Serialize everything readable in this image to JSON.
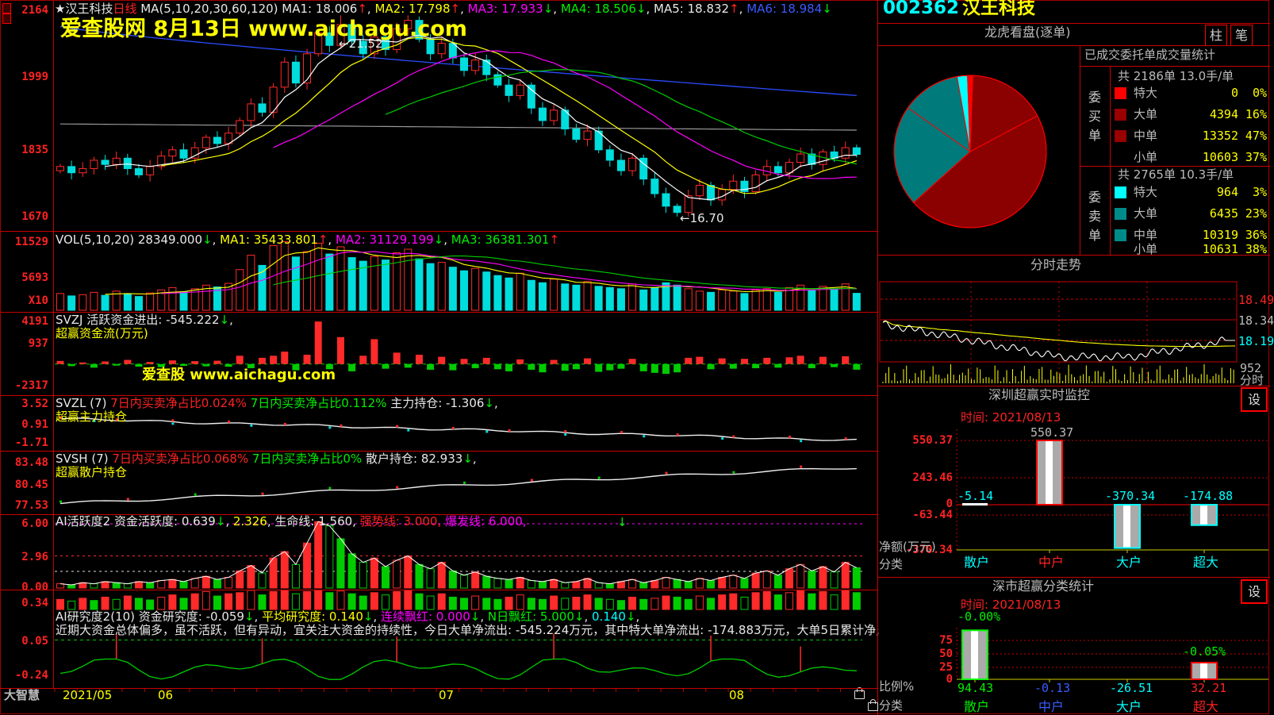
{
  "app": {
    "brand": "大智慧"
  },
  "watermark": {
    "main": "爱查股网   8月13日   www.aichagu.com",
    "inner": "爱查股 www.aichagu.com"
  },
  "main_header": {
    "segments": [
      [
        "★汉王科技",
        "w"
      ],
      [
        "日线",
        "r"
      ],
      [
        " MA(5,10,20,30,60,120) ",
        "w"
      ],
      [
        "MA1: 18.006",
        "w"
      ],
      [
        "↑",
        "r"
      ],
      [
        ", ",
        "w"
      ],
      [
        "MA2: 17.798",
        "y"
      ],
      [
        "↑",
        "r"
      ],
      [
        ", ",
        "w"
      ],
      [
        "MA3: 17.933",
        "m"
      ],
      [
        "↓",
        "g"
      ],
      [
        ", ",
        "w"
      ],
      [
        "MA4: 18.506",
        "g"
      ],
      [
        "↓",
        "g"
      ],
      [
        ", ",
        "w"
      ],
      [
        "MA5: 18.832",
        "w"
      ],
      [
        "↑",
        "r"
      ],
      [
        ", ",
        "w"
      ],
      [
        "MA6: 18.984",
        "b"
      ],
      [
        "↓",
        "g"
      ]
    ]
  },
  "annotations": {
    "high": "←21.52",
    "low": "←16.70"
  },
  "left_axis": {
    "main": [
      "2164",
      "1999",
      "1835",
      "1670"
    ],
    "vol": [
      "11529",
      "5693"
    ],
    "vol_unit": "X10",
    "svzj": [
      "4191",
      "937",
      "-2317"
    ],
    "svzl": [
      "3.52",
      "0.91",
      "-1.71"
    ],
    "svsh": [
      "83.48",
      "80.45",
      "77.53"
    ],
    "ai1": [
      "6.00",
      "2.96",
      "0.00"
    ],
    "ai2": [
      "0.34",
      "0.05",
      "-0.24"
    ]
  },
  "panel_headers": {
    "vol": {
      "segments": [
        [
          "VOL(5,10,20) 28349.000",
          "w"
        ],
        [
          "↓",
          "g"
        ],
        [
          ", ",
          "w"
        ],
        [
          "MA1: 35433.801",
          "y"
        ],
        [
          "↑",
          "r"
        ],
        [
          ", ",
          "w"
        ],
        [
          "MA2: 31129.199",
          "m"
        ],
        [
          "↓",
          "g"
        ],
        [
          ", ",
          "w"
        ],
        [
          "MA3: 36381.301",
          "g"
        ],
        [
          "↑",
          "r"
        ]
      ]
    },
    "svzj1": {
      "segments": [
        [
          "SVZJ  活跃资金进出: -545.222",
          "w"
        ],
        [
          "↓",
          "g"
        ],
        [
          ",",
          "w"
        ]
      ]
    },
    "svzj2": {
      "segments": [
        [
          "超赢资金流(万元)",
          "y"
        ]
      ]
    },
    "svzl1": {
      "segments": [
        [
          "SVZL (7) ",
          "w"
        ],
        [
          "7日内买卖净占比0.024% ",
          "r"
        ],
        [
          "7日内买卖净占比0.112% ",
          "g"
        ],
        [
          "主力持仓: -1.306",
          "w"
        ],
        [
          "↓",
          "g"
        ],
        [
          ",",
          "w"
        ]
      ]
    },
    "svzl2": {
      "segments": [
        [
          "超赢主力持仓",
          "y"
        ]
      ]
    },
    "svsh1": {
      "segments": [
        [
          "SVSH (7) ",
          "w"
        ],
        [
          "7日内买卖净占比0.068% ",
          "r"
        ],
        [
          "7日内买卖净占比0% ",
          "g"
        ],
        [
          "散户持仓: 82.933",
          "w"
        ],
        [
          "↓",
          "g"
        ],
        [
          ",",
          "w"
        ]
      ]
    },
    "svsh2": {
      "segments": [
        [
          "超赢散户持仓",
          "y"
        ]
      ]
    },
    "ai1": {
      "segments": [
        [
          "AI活跃度2 资金活跃度: 0.639",
          "w"
        ],
        [
          "↓",
          "g"
        ],
        [
          ", ",
          "w"
        ],
        [
          "2.326",
          "y"
        ],
        [
          ", ",
          "w"
        ],
        [
          "生命线: 1.560, ",
          "w"
        ],
        [
          "强势线: 3.000, ",
          "r"
        ],
        [
          "爆发线: 6.000,",
          "m"
        ]
      ]
    },
    "ai2": {
      "segments": [
        [
          "AI研究度2(10) 资金研究度: -0.059",
          "w"
        ],
        [
          "↓",
          "g"
        ],
        [
          ", ",
          "w"
        ],
        [
          "平均研究度: 0.140",
          "y"
        ],
        [
          "↓",
          "g"
        ],
        [
          ", ",
          "w"
        ],
        [
          "连续飘红: 0.000",
          "m"
        ],
        [
          "↓",
          "g"
        ],
        [
          ", ",
          "w"
        ],
        [
          "N日飘红: 5.000",
          "g"
        ],
        [
          "↓",
          "g"
        ],
        [
          ", ",
          "w"
        ],
        [
          "0.140",
          "c"
        ],
        [
          "↓",
          "g"
        ],
        [
          ",",
          "w"
        ]
      ]
    },
    "ai2note": {
      "segments": [
        [
          "近期大资金总体偏多，虽不活跃，但有异动，宜关注大资金的持续性，今日大单净流出: -545.224万元，其中特大单净流出: -174.883万元，大单5日累计净,",
          "w"
        ]
      ]
    }
  },
  "timeline": {
    "labels": [
      "2021/05",
      "06",
      "07",
      "08"
    ]
  },
  "right": {
    "code": "002362",
    "name": "汉王科技",
    "lhkp": {
      "title": "龙虎看盘(逐单)",
      "tab1": "柱",
      "tab2": "笔"
    },
    "order_stats": {
      "title": "已成交委托单成交量统计",
      "buy": {
        "side": "委买单",
        "summary": "共 2186单 13.0手/单",
        "rows": [
          {
            "label": "特大",
            "value": "0",
            "pct": "0%",
            "swatch": "#ff0000"
          },
          {
            "label": "大单",
            "value": "4394",
            "pct": "16%",
            "swatch": "#990000"
          },
          {
            "label": "中单",
            "value": "13352",
            "pct": "47%",
            "swatch": "#990000"
          },
          {
            "label": "小单",
            "value": "10603",
            "pct": "37%",
            "swatch": ""
          }
        ]
      },
      "sell": {
        "side": "委卖单",
        "summary": "共 2765单 10.3手/单",
        "rows": [
          {
            "label": "特大",
            "value": "964",
            "pct": "3%",
            "swatch": "#00ffff"
          },
          {
            "label": "大单",
            "value": "6435",
            "pct": "23%",
            "swatch": "#008b8b"
          },
          {
            "label": "中单",
            "value": "10319",
            "pct": "36%",
            "swatch": "#008b8b"
          },
          {
            "label": "小单",
            "value": "10631",
            "pct": "38%",
            "swatch": ""
          }
        ]
      }
    },
    "intraday": {
      "title": "分时走势",
      "label_high": "18.49",
      "label_mid": "18.34",
      "label_cur": "18.19",
      "label_vol": "952",
      "label_axis": "分时"
    },
    "monitor": {
      "title": "深圳超赢实时监控",
      "settings": "设",
      "time_label": "时间: 2021/08/13",
      "y_labels": [
        "550.37",
        "243.46",
        "-63.44",
        "-370.34"
      ],
      "zero_label": "0",
      "value_labels": [
        {
          "t": "-5.14",
          "c": "c"
        },
        {
          "t": "550.37",
          "c": "gy"
        },
        {
          "t": "-370.34",
          "c": "c"
        },
        {
          "t": "-174.88",
          "c": "c"
        }
      ],
      "categories": [
        {
          "t": "散户",
          "c": "c"
        },
        {
          "t": "中户",
          "c": "r"
        },
        {
          "t": "大户",
          "c": "c"
        },
        {
          "t": "超大",
          "c": "c"
        }
      ],
      "axis1": "净额(万元)",
      "axis2": "分类"
    },
    "classify": {
      "title": "深市超赢分类统计",
      "settings": "设",
      "time_label": "时间: 2021/08/13",
      "y_labels": [
        "75",
        "50",
        "25",
        "0"
      ],
      "pct_label_1": "-0.00%",
      "pct_label_2": "-0.05%",
      "value_labels": [
        {
          "t": "94.43",
          "c": "g"
        },
        {
          "t": "-0.13",
          "c": "b"
        },
        {
          "t": "-26.51",
          "c": "c"
        },
        {
          "t": "32.21",
          "c": "r"
        }
      ],
      "categories": [
        {
          "t": "散户",
          "c": "g"
        },
        {
          "t": "中户",
          "c": "b"
        },
        {
          "t": "大户",
          "c": "c"
        },
        {
          "t": "超大",
          "c": "r"
        }
      ],
      "axis1": "比例%",
      "axis2": "分类"
    }
  },
  "chart_data": [
    {
      "id": "kline",
      "type": "candlestick",
      "title": "汉王科技 日线",
      "ylim": [
        16.7,
        21.64
      ],
      "axis_labels": [
        2164,
        1999,
        1835,
        1670
      ],
      "high_max": 21.52,
      "low_min": 16.7,
      "x_axis": [
        "2021/05",
        "06",
        "07",
        "08"
      ],
      "closes": [
        17.9,
        17.75,
        17.85,
        18.05,
        17.95,
        18.1,
        17.85,
        17.7,
        17.9,
        18.15,
        18.3,
        18.1,
        18.35,
        18.6,
        18.45,
        18.7,
        19.0,
        19.4,
        19.2,
        19.8,
        20.4,
        19.9,
        20.6,
        21.1,
        20.8,
        21.3,
        20.9,
        20.6,
        21.0,
        20.7,
        21.2,
        21.4,
        20.95,
        20.6,
        20.85,
        20.5,
        20.2,
        20.45,
        20.1,
        19.85,
        19.6,
        19.85,
        19.3,
        19.0,
        19.25,
        18.8,
        18.55,
        18.75,
        18.3,
        18.05,
        17.8,
        18.1,
        17.6,
        17.25,
        16.95,
        16.8,
        17.2,
        17.45,
        17.1,
        17.35,
        17.55,
        17.3,
        17.7,
        17.9,
        17.75,
        18.0,
        18.2,
        17.95,
        18.25,
        18.1,
        18.35,
        18.19
      ],
      "ma_legend": [
        {
          "name": "MA1",
          "value": 18.006
        },
        {
          "name": "MA2",
          "value": 17.798
        },
        {
          "name": "MA3",
          "value": 17.933
        },
        {
          "name": "MA4",
          "value": 18.506
        },
        {
          "name": "MA5",
          "value": 18.832
        },
        {
          "name": "MA6",
          "value": 18.984
        }
      ]
    },
    {
      "id": "volume",
      "type": "bar",
      "ylim": [
        0,
        11529
      ],
      "unit": "X10",
      "current": 28349.0,
      "ma": [
        {
          "name": "MA1",
          "value": 35433.801
        },
        {
          "name": "MA2",
          "value": 31129.199
        },
        {
          "name": "MA3",
          "value": 36381.301
        }
      ],
      "values": [
        2800,
        2400,
        2600,
        3000,
        2500,
        3200,
        2700,
        2300,
        2900,
        3400,
        3800,
        3100,
        3600,
        4200,
        3900,
        4500,
        6800,
        9200,
        7500,
        10800,
        11450,
        8900,
        9800,
        11200,
        9400,
        10600,
        8800,
        8200,
        9000,
        8400,
        9600,
        10200,
        8600,
        7800,
        8000,
        7200,
        6600,
        7000,
        6400,
        5800,
        5400,
        6200,
        5000,
        4600,
        5200,
        4400,
        4200,
        4800,
        4000,
        3800,
        3600,
        4400,
        3400,
        3800,
        4600,
        4200,
        3600,
        3200,
        3000,
        3400,
        3200,
        2800,
        3400,
        3600,
        3000,
        3800,
        4200,
        3400,
        4000,
        3600,
        4400,
        2835
      ]
    },
    {
      "id": "svzj",
      "type": "bar",
      "ylim": [
        -2317,
        4191
      ],
      "current": -545.222,
      "values": [
        300,
        -200,
        150,
        -350,
        250,
        -150,
        400,
        -250,
        200,
        -300,
        350,
        -180,
        280,
        -220,
        320,
        -260,
        800,
        -400,
        600,
        800,
        1200,
        -600,
        900,
        4100,
        -500,
        2600,
        -700,
        800,
        2400,
        -450,
        1100,
        -350,
        900,
        -550,
        700,
        -600,
        500,
        -400,
        600,
        -500,
        -700,
        450,
        -550,
        -800,
        400,
        -650,
        -500,
        550,
        -750,
        -600,
        -450,
        500,
        -700,
        -850,
        -950,
        -800,
        600,
        700,
        -500,
        550,
        -450,
        500,
        -400,
        600,
        -350,
        650,
        800,
        -400,
        700,
        -300,
        750,
        -545
      ]
    },
    {
      "id": "svzl",
      "type": "line",
      "ylim": [
        -1.71,
        3.52
      ],
      "start": 1.5,
      "end": -1.306
    },
    {
      "id": "svsh",
      "type": "line",
      "ylim": [
        77.53,
        83.48
      ],
      "start": 77.9,
      "end": 82.933
    },
    {
      "id": "ai_activity",
      "type": "bar+line",
      "ylim": [
        0,
        6.5
      ],
      "thresholds": {
        "life": 1.56,
        "strong": 3.0,
        "burst": 6.0
      },
      "marker_index": 50,
      "values": [
        0.4,
        0.3,
        0.5,
        0.4,
        0.6,
        0.5,
        0.4,
        0.6,
        0.5,
        0.7,
        0.8,
        0.6,
        0.9,
        1.1,
        0.8,
        1.0,
        1.6,
        2.1,
        1.4,
        2.8,
        3.4,
        2.2,
        4.2,
        6.4,
        5.8,
        4.6,
        3.2,
        2.4,
        2.8,
        2.0,
        2.6,
        3.0,
        2.2,
        1.8,
        2.4,
        1.6,
        1.2,
        1.5,
        1.1,
        0.9,
        0.8,
        1.0,
        0.7,
        0.6,
        0.8,
        0.5,
        0.6,
        0.9,
        0.5,
        0.4,
        0.6,
        0.8,
        0.5,
        0.7,
        1.0,
        0.8,
        0.6,
        0.9,
        0.7,
        1.0,
        1.2,
        0.9,
        1.4,
        1.6,
        1.2,
        1.8,
        2.2,
        1.6,
        2.0,
        1.5,
        2.4,
        1.9
      ]
    },
    {
      "id": "ai_research",
      "type": "bar+line",
      "ylim": [
        -0.24,
        0.34
      ],
      "spike_indices": [
        5,
        18,
        30,
        44,
        58,
        66
      ],
      "bar_values": [
        0.18,
        0.15,
        0.2,
        0.16,
        0.22,
        0.18,
        0.24,
        0.2,
        0.17,
        0.22,
        0.26,
        0.2,
        0.28,
        0.32,
        0.24,
        0.28,
        0.3,
        0.34,
        0.26,
        0.32,
        0.34,
        0.28,
        0.32,
        0.34,
        0.3,
        0.33,
        0.28,
        0.24,
        0.3,
        0.26,
        0.32,
        0.34,
        0.28,
        0.24,
        0.28,
        0.22,
        0.2,
        0.24,
        0.2,
        0.18,
        0.22,
        0.26,
        0.2,
        0.18,
        0.24,
        0.2,
        0.22,
        0.26,
        0.2,
        0.18,
        0.16,
        0.22,
        0.18,
        0.2,
        0.24,
        0.22,
        0.18,
        0.24,
        0.2,
        0.26,
        0.28,
        0.22,
        0.3,
        0.32,
        0.26,
        0.3,
        0.34,
        0.28,
        0.32,
        0.26,
        0.34,
        0.3
      ]
    },
    {
      "id": "intraday",
      "type": "line",
      "prev_close": 18.34,
      "last": 18.19,
      "upper": 18.49,
      "volume_last": 952
    },
    {
      "id": "sz_monitor",
      "type": "bar",
      "title": "深圳超赢实时监控",
      "categories": [
        "散户",
        "中户",
        "大户",
        "超大"
      ],
      "values": [
        -5.14,
        550.37,
        -370.34,
        -174.88
      ],
      "ylabels": [
        550.37,
        243.46,
        -63.44,
        -370.34
      ],
      "unit": "净额(万元)",
      "date": "2021/08/13"
    },
    {
      "id": "sz_classify",
      "type": "bar",
      "title": "深市超赢分类统计",
      "categories": [
        "散户",
        "中户",
        "大户",
        "超大"
      ],
      "values": [
        94.43,
        -0.13,
        -26.51,
        32.21
      ],
      "ylim": [
        0,
        100
      ],
      "yticks": [
        75,
        50,
        25,
        0
      ],
      "unit": "比例%",
      "date": "2021/08/13",
      "pct_annotations": [
        "-0.00%",
        "-0.05%"
      ]
    },
    {
      "id": "pie",
      "type": "pie",
      "center_note": "龙虎看盘(逐单)",
      "slices": [
        {
          "s": -10,
          "e": -2,
          "color": "#00ffff",
          "name": "sell-特大"
        },
        {
          "s": -2,
          "e": 2,
          "color": "#ff0000",
          "name": "buy-特大"
        },
        {
          "s": 2,
          "e": 62,
          "color": "#8b0000",
          "name": "buy-大单"
        },
        {
          "s": 62,
          "e": 228,
          "color": "#8b0000",
          "name": "buy-中单"
        },
        {
          "s": 228,
          "e": 305,
          "color": "#007a7a",
          "name": "sell-中单"
        },
        {
          "s": 305,
          "e": 350,
          "color": "#007a7a",
          "name": "sell-大单"
        }
      ]
    }
  ]
}
